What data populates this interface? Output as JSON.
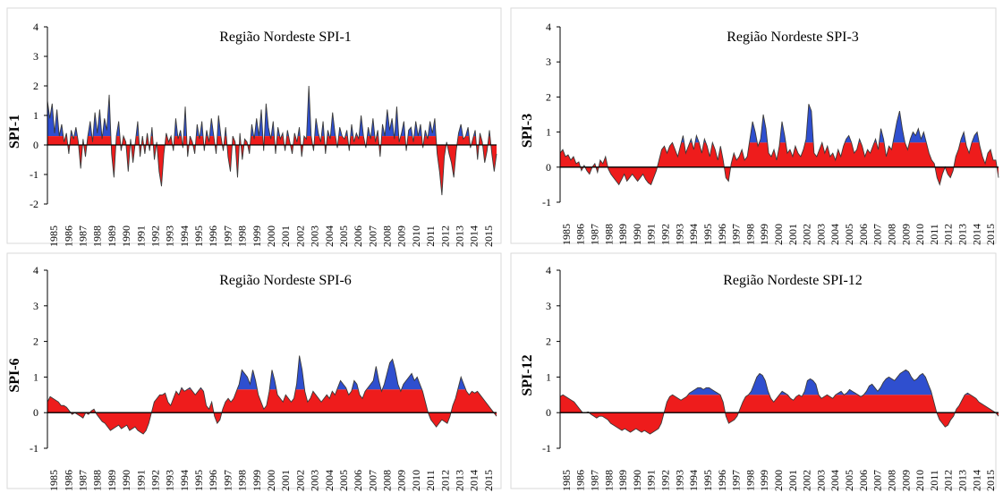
{
  "colors": {
    "above": "#2f4fcf",
    "base": "#ee1c1c",
    "outline": "#3a3a3a",
    "panel_border": "#d9d9d9"
  },
  "years": [
    "1985",
    "1986",
    "1987",
    "1988",
    "1989",
    "1990",
    "1991",
    "1992",
    "1993",
    "1994",
    "1995",
    "1996",
    "1997",
    "1998",
    "1999",
    "2000",
    "2001",
    "2002",
    "2003",
    "2004",
    "2005",
    "2006",
    "2007",
    "2008",
    "2009",
    "2010",
    "2011",
    "2012",
    "2013",
    "2014",
    "2015"
  ],
  "chart_data": [
    {
      "type": "area",
      "title": "Região Nordeste SPI-1",
      "ylabel": "SPI-1",
      "ylim": [
        -2,
        4
      ],
      "yticks": [
        -2,
        -1,
        0,
        1,
        2,
        3,
        4
      ],
      "fill_threshold": 0.3,
      "series": [
        {
          "values": [
            1.5,
            0.9,
            1.4,
            0.4,
            1.2,
            0.3,
            0.7,
            0.1,
            0.4,
            -0.3,
            0.5,
            0.2,
            0.6,
            0.1,
            -0.8,
            0.2,
            -0.4,
            0.3,
            0.8,
            0.1,
            1.1,
            0.4,
            1.2,
            0.2,
            0.9,
            0.5,
            1.7,
            -0.3,
            -1.1,
            0.3,
            0.8,
            -0.2,
            0.3,
            0.1,
            -0.9,
            0.2,
            -0.6,
            0.1,
            0.8,
            -0.4,
            0.3,
            -0.3,
            0.4,
            -0.2,
            0.6,
            -0.5,
            0.1,
            -0.9,
            -1.4,
            -0.3,
            0.4,
            0.1,
            0.3,
            -0.2,
            0.9,
            0.2,
            0.5,
            -0.1,
            1.3,
            -0.4,
            0.3,
            0.1,
            -0.3,
            0.7,
            0.2,
            0.8,
            -0.2,
            0.5,
            0.1,
            0.9,
            0.3,
            -0.3,
            1.0,
            0.3,
            -0.2,
            0.6,
            -0.4,
            -0.9,
            0.3,
            0.1,
            -1.1,
            0.4,
            -0.5,
            0.2,
            0.1,
            -0.3,
            0.7,
            0.2,
            0.9,
            0.3,
            1.2,
            -0.2,
            1.4,
            0.6,
            0.2,
            0.8,
            -0.3,
            0.6,
            0.2,
            0.4,
            -0.2,
            0.5,
            0.1,
            -0.3,
            0.4,
            0.1,
            0.6,
            -0.4,
            0.3,
            0.2,
            2.0,
            0.3,
            -0.2,
            0.9,
            0.4,
            0.1,
            0.8,
            -0.3,
            0.5,
            0.2,
            1.1,
            0.4,
            -0.1,
            0.6,
            0.3,
            0.2,
            0.5,
            -0.2,
            0.7,
            0.1,
            0.4,
            0.2,
            1.0,
            0.3,
            -0.1,
            0.6,
            0.2,
            0.9,
            0.1,
            0.5,
            -0.4,
            0.7,
            0.3,
            1.2,
            0.5,
            0.9,
            0.2,
            1.3,
            0.1,
            0.4,
            0.8,
            -0.2,
            0.5,
            0.6,
            0.1,
            0.8,
            0.3,
            0.7,
            -0.1,
            0.5,
            0.2,
            0.8,
            0.4,
            0.9,
            -0.3,
            -0.9,
            -1.7,
            -0.4,
            0.1,
            -0.3,
            -0.6,
            -1.1,
            -0.2,
            0.4,
            0.7,
            0.2,
            0.3,
            0.6,
            -0.1,
            0.2,
            0.5,
            -0.5,
            0.4,
            0.1,
            -0.6,
            -0.2,
            0.5,
            -0.3,
            -0.9,
            -0.3
          ]
        }
      ]
    },
    {
      "type": "area",
      "title": "Região Nordeste SPI-3",
      "ylabel": "SPI-3",
      "ylim": [
        -1,
        4
      ],
      "yticks": [
        -1,
        0,
        1,
        2,
        3,
        4
      ],
      "fill_threshold": 0.7,
      "series": [
        {
          "values": [
            0.4,
            0.5,
            0.3,
            0.35,
            0.2,
            0.3,
            0.1,
            0.15,
            -0.1,
            0.05,
            -0.1,
            -0.2,
            0.0,
            0.1,
            -0.15,
            0.2,
            0.1,
            0.3,
            -0.05,
            -0.2,
            -0.3,
            -0.4,
            -0.5,
            -0.35,
            -0.2,
            -0.4,
            -0.3,
            -0.2,
            -0.3,
            -0.4,
            -0.3,
            -0.2,
            -0.35,
            -0.45,
            -0.5,
            -0.3,
            -0.1,
            0.2,
            0.5,
            0.6,
            0.4,
            0.6,
            0.7,
            0.5,
            0.3,
            0.6,
            0.9,
            0.4,
            0.6,
            0.8,
            0.5,
            0.9,
            0.7,
            0.4,
            0.8,
            0.6,
            0.3,
            0.7,
            0.5,
            0.2,
            0.6,
            0.2,
            -0.3,
            -0.4,
            0.1,
            0.4,
            0.2,
            0.3,
            0.5,
            0.2,
            0.3,
            0.8,
            1.3,
            1.0,
            0.6,
            0.8,
            1.5,
            1.1,
            0.4,
            0.3,
            0.5,
            0.2,
            0.6,
            1.3,
            0.9,
            0.4,
            0.5,
            0.3,
            0.6,
            0.4,
            0.3,
            0.5,
            0.8,
            1.8,
            1.6,
            0.4,
            0.3,
            0.5,
            0.7,
            0.4,
            0.6,
            0.3,
            0.4,
            0.2,
            0.5,
            0.3,
            0.6,
            0.8,
            0.9,
            0.7,
            0.4,
            0.5,
            0.8,
            0.6,
            0.3,
            0.5,
            0.4,
            0.6,
            0.8,
            0.5,
            1.1,
            0.8,
            0.3,
            0.6,
            0.5,
            0.9,
            1.3,
            1.6,
            1.1,
            0.7,
            0.5,
            0.8,
            1.0,
            0.9,
            1.1,
            0.8,
            1.0,
            0.7,
            0.4,
            0.2,
            0.1,
            -0.3,
            -0.5,
            -0.2,
            0.0,
            -0.2,
            -0.3,
            -0.1,
            0.3,
            0.5,
            0.8,
            1.0,
            0.6,
            0.4,
            0.7,
            0.9,
            1.0,
            0.6,
            0.3,
            0.1,
            0.4,
            0.5,
            0.2,
            0.2,
            -0.3
          ]
        }
      ]
    },
    {
      "type": "area",
      "title": "Região Nordeste SPI-6",
      "ylabel": "SPI-6",
      "ylim": [
        -1,
        4
      ],
      "yticks": [
        -1,
        0,
        1,
        2,
        3,
        4
      ],
      "fill_threshold": 0.65,
      "series": [
        {
          "values": [
            0.3,
            0.45,
            0.4,
            0.35,
            0.3,
            0.2,
            0.2,
            0.15,
            0.05,
            -0.05,
            0.0,
            -0.05,
            -0.1,
            -0.15,
            0.0,
            -0.05,
            0.05,
            0.1,
            -0.05,
            -0.15,
            -0.25,
            -0.3,
            -0.4,
            -0.5,
            -0.45,
            -0.4,
            -0.35,
            -0.45,
            -0.4,
            -0.35,
            -0.5,
            -0.45,
            -0.4,
            -0.5,
            -0.55,
            -0.6,
            -0.5,
            -0.3,
            0.0,
            0.3,
            0.4,
            0.5,
            0.5,
            0.55,
            0.3,
            0.2,
            0.4,
            0.6,
            0.5,
            0.7,
            0.6,
            0.65,
            0.7,
            0.6,
            0.5,
            0.6,
            0.7,
            0.6,
            0.2,
            0.1,
            0.3,
            -0.1,
            -0.3,
            -0.2,
            0.1,
            0.3,
            0.4,
            0.3,
            0.4,
            0.6,
            0.8,
            1.2,
            1.1,
            1.0,
            0.8,
            1.2,
            0.9,
            0.5,
            0.3,
            0.1,
            0.2,
            0.6,
            1.2,
            0.9,
            0.5,
            0.4,
            0.3,
            0.5,
            0.4,
            0.3,
            0.4,
            0.8,
            1.6,
            1.2,
            0.6,
            0.3,
            0.4,
            0.6,
            0.5,
            0.4,
            0.3,
            0.4,
            0.5,
            0.4,
            0.6,
            0.5,
            0.7,
            0.9,
            0.8,
            0.7,
            0.5,
            0.6,
            0.9,
            0.8,
            0.5,
            0.4,
            0.6,
            0.7,
            0.8,
            0.9,
            1.3,
            0.9,
            0.6,
            0.8,
            1.1,
            1.4,
            1.5,
            1.2,
            0.8,
            0.6,
            0.8,
            0.9,
            1.0,
            1.1,
            0.9,
            1.0,
            0.8,
            0.6,
            0.3,
            0.0,
            -0.2,
            -0.3,
            -0.4,
            -0.3,
            -0.2,
            -0.25,
            -0.3,
            -0.1,
            0.2,
            0.4,
            0.7,
            1.0,
            0.8,
            0.6,
            0.5,
            0.6,
            0.55,
            0.6,
            0.5,
            0.4,
            0.3,
            0.2,
            0.1,
            0.0,
            -0.1
          ]
        }
      ]
    },
    {
      "type": "area",
      "title": "Região Nordeste SPI-12",
      "ylabel": "SPI-12",
      "ylim": [
        -1,
        4
      ],
      "yticks": [
        -1,
        0,
        1,
        2,
        3,
        4
      ],
      "fill_threshold": 0.5,
      "series": [
        {
          "values": [
            0.45,
            0.5,
            0.45,
            0.4,
            0.35,
            0.3,
            0.2,
            0.1,
            0.0,
            0.0,
            0.02,
            -0.05,
            -0.1,
            -0.15,
            -0.1,
            -0.1,
            -0.15,
            -0.2,
            -0.3,
            -0.35,
            -0.4,
            -0.45,
            -0.5,
            -0.45,
            -0.5,
            -0.55,
            -0.5,
            -0.45,
            -0.5,
            -0.55,
            -0.5,
            -0.55,
            -0.6,
            -0.55,
            -0.5,
            -0.45,
            -0.3,
            0.0,
            0.3,
            0.45,
            0.5,
            0.45,
            0.4,
            0.35,
            0.4,
            0.45,
            0.55,
            0.6,
            0.65,
            0.7,
            0.7,
            0.65,
            0.7,
            0.7,
            0.65,
            0.6,
            0.55,
            0.5,
            0.3,
            -0.1,
            -0.3,
            -0.25,
            -0.2,
            -0.1,
            0.1,
            0.3,
            0.45,
            0.5,
            0.6,
            0.8,
            1.0,
            1.1,
            1.05,
            0.9,
            0.6,
            0.4,
            0.3,
            0.4,
            0.5,
            0.6,
            0.55,
            0.5,
            0.4,
            0.35,
            0.45,
            0.5,
            0.45,
            0.6,
            0.9,
            0.95,
            0.9,
            0.8,
            0.5,
            0.4,
            0.45,
            0.5,
            0.45,
            0.4,
            0.5,
            0.55,
            0.6,
            0.5,
            0.55,
            0.65,
            0.6,
            0.55,
            0.5,
            0.45,
            0.5,
            0.6,
            0.75,
            0.8,
            0.7,
            0.6,
            0.7,
            0.85,
            0.95,
            1.0,
            0.95,
            0.9,
            1.0,
            1.1,
            1.15,
            1.2,
            1.15,
            1.0,
            0.9,
            0.95,
            1.05,
            1.1,
            1.0,
            0.8,
            0.6,
            0.3,
            0.0,
            -0.2,
            -0.3,
            -0.4,
            -0.35,
            -0.2,
            -0.1,
            0.1,
            0.2,
            0.35,
            0.5,
            0.55,
            0.5,
            0.45,
            0.4,
            0.3,
            0.25,
            0.2,
            0.15,
            0.1,
            0.05,
            0.0,
            -0.1
          ]
        }
      ]
    }
  ]
}
